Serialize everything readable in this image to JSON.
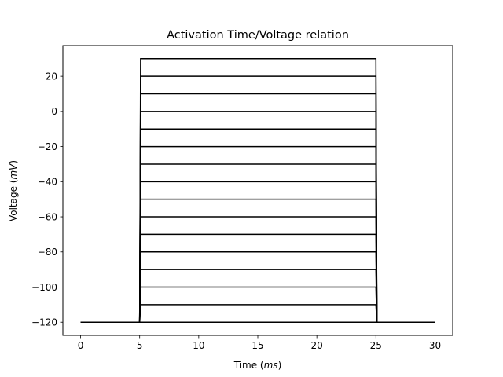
{
  "chart_data": {
    "type": "line",
    "title": "Activation Time/Voltage relation",
    "xlabel": {
      "text": "Time (",
      "italic": "ms",
      "suffix": ")"
    },
    "ylabel": {
      "text": "Voltage (",
      "italic": "mV",
      "suffix": ")"
    },
    "xlim": [
      -1.5,
      31.5
    ],
    "ylim": [
      -127.5,
      37.5
    ],
    "xticks": [
      0,
      5,
      10,
      15,
      20,
      25,
      30
    ],
    "xtick_labels": [
      "0",
      "5",
      "10",
      "15",
      "20",
      "25",
      "30"
    ],
    "yticks": [
      -120,
      -100,
      -80,
      -60,
      -40,
      -20,
      0,
      20
    ],
    "ytick_labels": [
      "−120",
      "−100",
      "−80",
      "−60",
      "−40",
      "−20",
      "0",
      "20"
    ],
    "grid": false,
    "line_color": "#000000",
    "protocol": {
      "holding_voltage": -120,
      "step_start": 5,
      "step_end": 25,
      "t_start": 0,
      "t_end": 30
    },
    "step_voltages": [
      -120,
      -110,
      -100,
      -90,
      -80,
      -70,
      -60,
      -50,
      -40,
      -30,
      -20,
      -10,
      0,
      10,
      20,
      30
    ]
  }
}
